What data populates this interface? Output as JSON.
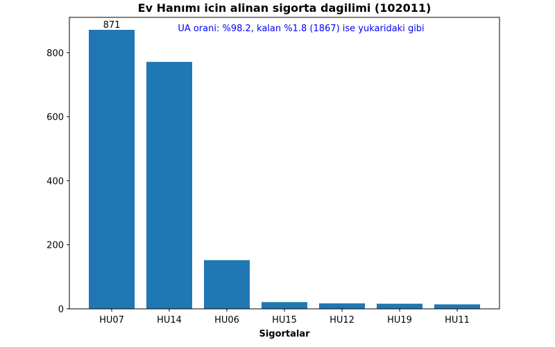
{
  "chart_data": {
    "type": "bar",
    "title": "Ev Hanımı icin alinan sigorta dagilimi (102011)",
    "xlabel": "Sigortalar",
    "ylabel": "",
    "categories": [
      "HU07",
      "HU14",
      "HU06",
      "HU15",
      "HU12",
      "HU19",
      "HU11"
    ],
    "values": [
      871,
      771,
      152,
      21,
      17,
      16,
      14
    ],
    "ylim": [
      0,
      910
    ],
    "yticks": [
      0,
      200,
      400,
      600,
      800
    ],
    "data_labels": [
      {
        "category": "HU07",
        "text": "871"
      }
    ],
    "annotation": "UA orani: %98.2, kalan %1.8 (1867) ise yukaridaki gibi",
    "grid": false,
    "bar_color": "#1f77b4",
    "annotation_color": "#0000ff"
  }
}
